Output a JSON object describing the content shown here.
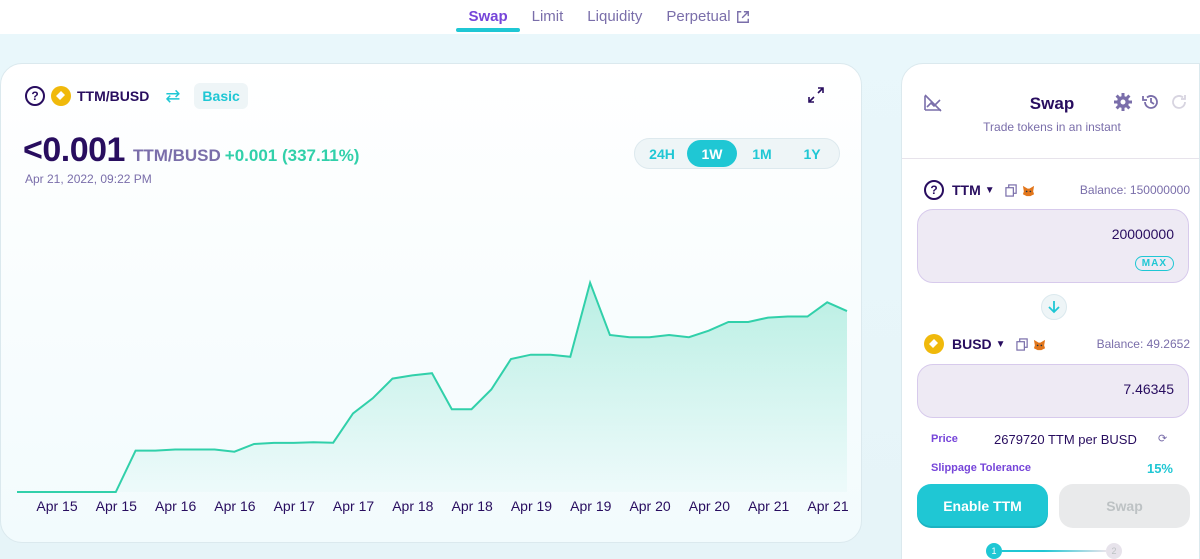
{
  "nav": {
    "items": [
      {
        "label": "Swap",
        "active": true
      },
      {
        "label": "Limit",
        "active": false
      },
      {
        "label": "Liquidity",
        "active": false
      },
      {
        "label": "Perpetual",
        "active": false,
        "external": true
      }
    ]
  },
  "chart_header": {
    "pair": "TTM/BUSD",
    "mode_button": "Basic",
    "price": "<0.001",
    "price_pair": "TTM/BUSD",
    "change": "+0.001 (337.11%)",
    "datetime": "Apr 21, 2022, 09:22 PM",
    "timeframes": [
      {
        "label": "24H",
        "active": false
      },
      {
        "label": "1W",
        "active": true
      },
      {
        "label": "1M",
        "active": false
      },
      {
        "label": "1Y",
        "active": false
      }
    ]
  },
  "chart_data": {
    "type": "area",
    "x_tick_labels": [
      "Apr 15",
      "Apr 15",
      "Apr 16",
      "Apr 16",
      "Apr 17",
      "Apr 17",
      "Apr 18",
      "Apr 18",
      "Apr 19",
      "Apr 19",
      "Apr 20",
      "Apr 20",
      "Apr 21",
      "Apr 21"
    ],
    "y": [
      0.0,
      0.0,
      0.0,
      0.0,
      0.0,
      0.0,
      0.19,
      0.19,
      0.195,
      0.195,
      0.195,
      0.185,
      0.22,
      0.225,
      0.225,
      0.228,
      0.226,
      0.36,
      0.43,
      0.52,
      0.535,
      0.545,
      0.38,
      0.38,
      0.47,
      0.61,
      0.63,
      0.63,
      0.62,
      0.96,
      0.72,
      0.71,
      0.71,
      0.72,
      0.71,
      0.74,
      0.78,
      0.78,
      0.8,
      0.805,
      0.805,
      0.87,
      0.83
    ],
    "line_color": "#31d0aa",
    "fill_color": "#31d0aa",
    "grid": false
  },
  "swap": {
    "title": "Swap",
    "subtitle": "Trade tokens in an instant",
    "from": {
      "token": "TTM",
      "balance": "Balance: 150000000",
      "amount": "20000000",
      "max_label": "MAX"
    },
    "to": {
      "token": "BUSD",
      "balance": "Balance: 49.2652",
      "amount": "7.46345"
    },
    "price_label": "Price",
    "price_value": "2679720 TTM per BUSD",
    "slippage_label": "Slippage Tolerance",
    "slippage_value": "15%",
    "enable_button": "Enable TTM",
    "swap_button": "Swap",
    "steps": [
      "1",
      "2"
    ]
  },
  "colors": {
    "primary": "#1fc7d4",
    "secondary": "#7645d9",
    "text": "#280d5f",
    "subtle": "#7a6eaa",
    "success": "#31d0aa"
  }
}
